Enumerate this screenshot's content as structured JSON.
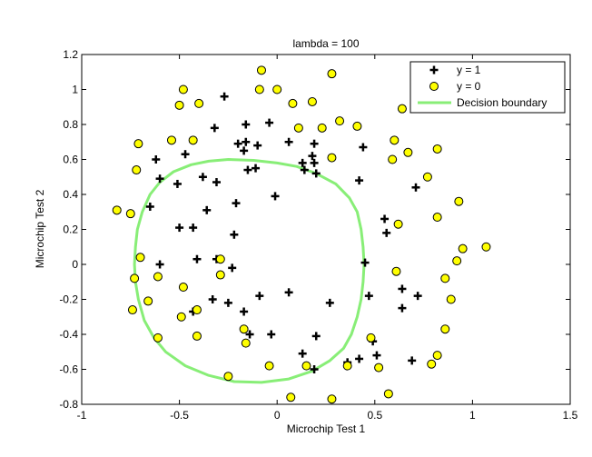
{
  "chart_data": {
    "type": "scatter",
    "title": "lambda = 100",
    "xlabel": "Microchip Test 1",
    "ylabel": "Microchip Test 2",
    "xlim": [
      -1,
      1.5
    ],
    "ylim": [
      -0.8,
      1.2
    ],
    "x_ticks": [
      -1,
      -0.5,
      0,
      0.5,
      1,
      1.5
    ],
    "x_tick_labels": [
      "-1",
      "-0.5",
      "0",
      "0.5",
      "1",
      "1.5"
    ],
    "y_ticks": [
      -0.8,
      -0.6,
      -0.4,
      -0.2,
      0,
      0.2,
      0.4,
      0.6,
      0.8,
      1,
      1.2
    ],
    "y_tick_labels": [
      "-0.8",
      "-0.6",
      "-0.4",
      "-0.2",
      "0",
      "0.2",
      "0.4",
      "0.6",
      "0.8",
      "1",
      "1.2"
    ],
    "grid": false,
    "legend_position": "top-right",
    "series": [
      {
        "name": "y = 1",
        "marker": "plus",
        "color": "#000000",
        "points": [
          [
            -0.27,
            0.96
          ],
          [
            -0.16,
            0.8
          ],
          [
            -0.04,
            0.81
          ],
          [
            -0.32,
            0.78
          ],
          [
            -0.16,
            0.7
          ],
          [
            -0.2,
            0.69
          ],
          [
            -0.1,
            0.68
          ],
          [
            -0.17,
            0.65
          ],
          [
            -0.47,
            0.63
          ],
          [
            -0.62,
            0.6
          ],
          [
            0.06,
            0.7
          ],
          [
            0.19,
            0.69
          ],
          [
            0.18,
            0.62
          ],
          [
            0.19,
            0.58
          ],
          [
            0.44,
            0.67
          ],
          [
            0.13,
            0.58
          ],
          [
            0.14,
            0.54
          ],
          [
            0.2,
            0.52
          ],
          [
            -0.15,
            0.54
          ],
          [
            -0.11,
            0.55
          ],
          [
            -0.38,
            0.5
          ],
          [
            -0.51,
            0.46
          ],
          [
            -0.31,
            0.47
          ],
          [
            -0.6,
            0.49
          ],
          [
            0.42,
            0.48
          ],
          [
            0.71,
            0.44
          ],
          [
            -0.01,
            0.39
          ],
          [
            -0.21,
            0.35
          ],
          [
            -0.65,
            0.33
          ],
          [
            -0.36,
            0.31
          ],
          [
            0.55,
            0.26
          ],
          [
            -0.43,
            0.21
          ],
          [
            -0.5,
            0.21
          ],
          [
            -0.22,
            0.17
          ],
          [
            0.56,
            0.18
          ],
          [
            -0.41,
            0.03
          ],
          [
            -0.31,
            0.03
          ],
          [
            -0.6,
            0.0
          ],
          [
            -0.23,
            -0.02
          ],
          [
            0.45,
            0.01
          ],
          [
            0.64,
            -0.14
          ],
          [
            0.72,
            -0.18
          ],
          [
            0.47,
            -0.18
          ],
          [
            0.64,
            -0.25
          ],
          [
            -0.33,
            -0.2
          ],
          [
            -0.25,
            -0.22
          ],
          [
            -0.09,
            -0.18
          ],
          [
            0.06,
            -0.16
          ],
          [
            0.27,
            -0.22
          ],
          [
            -0.43,
            -0.27
          ],
          [
            -0.17,
            -0.27
          ],
          [
            -0.14,
            -0.4
          ],
          [
            -0.03,
            -0.4
          ],
          [
            0.2,
            -0.41
          ],
          [
            0.49,
            -0.44
          ],
          [
            0.13,
            -0.51
          ],
          [
            0.42,
            -0.54
          ],
          [
            0.51,
            -0.52
          ],
          [
            0.36,
            -0.56
          ],
          [
            0.69,
            -0.55
          ],
          [
            0.19,
            -0.6
          ]
        ]
      },
      {
        "name": "y = 0",
        "marker": "circle",
        "color": "#ffff00",
        "points": [
          [
            -0.08,
            1.11
          ],
          [
            -0.48,
            1.0
          ],
          [
            -0.09,
            1.0
          ],
          [
            0.0,
            1.0
          ],
          [
            0.28,
            1.09
          ],
          [
            0.08,
            0.92
          ],
          [
            0.18,
            0.93
          ],
          [
            -0.5,
            0.91
          ],
          [
            -0.4,
            0.92
          ],
          [
            0.32,
            0.82
          ],
          [
            0.41,
            0.79
          ],
          [
            0.64,
            0.89
          ],
          [
            0.11,
            0.78
          ],
          [
            0.23,
            0.78
          ],
          [
            -0.71,
            0.69
          ],
          [
            -0.54,
            0.71
          ],
          [
            -0.43,
            0.71
          ],
          [
            0.6,
            0.71
          ],
          [
            0.82,
            0.66
          ],
          [
            0.67,
            0.64
          ],
          [
            0.59,
            0.6
          ],
          [
            0.28,
            0.61
          ],
          [
            -0.72,
            0.54
          ],
          [
            0.77,
            0.5
          ],
          [
            -0.82,
            0.31
          ],
          [
            -0.75,
            0.29
          ],
          [
            0.93,
            0.36
          ],
          [
            0.82,
            0.27
          ],
          [
            0.62,
            0.23
          ],
          [
            0.95,
            0.09
          ],
          [
            1.07,
            0.1
          ],
          [
            0.92,
            0.02
          ],
          [
            -0.7,
            0.04
          ],
          [
            -0.29,
            0.03
          ],
          [
            0.61,
            -0.04
          ],
          [
            -0.29,
            -0.06
          ],
          [
            -0.73,
            -0.08
          ],
          [
            -0.61,
            -0.07
          ],
          [
            0.86,
            -0.08
          ],
          [
            -0.48,
            -0.13
          ],
          [
            0.89,
            -0.2
          ],
          [
            -0.66,
            -0.21
          ],
          [
            -0.74,
            -0.26
          ],
          [
            -0.41,
            -0.26
          ],
          [
            -0.49,
            -0.3
          ],
          [
            0.86,
            -0.37
          ],
          [
            -0.17,
            -0.37
          ],
          [
            -0.16,
            -0.45
          ],
          [
            -0.61,
            -0.42
          ],
          [
            -0.41,
            -0.41
          ],
          [
            0.48,
            -0.42
          ],
          [
            0.82,
            -0.52
          ],
          [
            0.79,
            -0.57
          ],
          [
            0.36,
            -0.58
          ],
          [
            0.15,
            -0.58
          ],
          [
            -0.04,
            -0.58
          ],
          [
            0.52,
            -0.59
          ],
          [
            -0.25,
            -0.64
          ],
          [
            0.57,
            -0.74
          ],
          [
            0.07,
            -0.76
          ],
          [
            0.28,
            -0.77
          ]
        ]
      },
      {
        "name": "Decision boundary",
        "type": "line",
        "color": "#88ee77",
        "points": [
          [
            -0.25,
            0.6
          ],
          [
            -0.12,
            0.595
          ],
          [
            0.0,
            0.58
          ],
          [
            0.1,
            0.56
          ],
          [
            0.2,
            0.52
          ],
          [
            0.3,
            0.46
          ],
          [
            0.37,
            0.38
          ],
          [
            0.41,
            0.3
          ],
          [
            0.43,
            0.2
          ],
          [
            0.44,
            0.1
          ],
          [
            0.445,
            0.0
          ],
          [
            0.44,
            -0.1
          ],
          [
            0.43,
            -0.2
          ],
          [
            0.41,
            -0.3
          ],
          [
            0.38,
            -0.4
          ],
          [
            0.34,
            -0.48
          ],
          [
            0.27,
            -0.55
          ],
          [
            0.18,
            -0.61
          ],
          [
            0.06,
            -0.655
          ],
          [
            -0.08,
            -0.675
          ],
          [
            -0.22,
            -0.67
          ],
          [
            -0.35,
            -0.635
          ],
          [
            -0.47,
            -0.58
          ],
          [
            -0.57,
            -0.5
          ],
          [
            -0.63,
            -0.42
          ],
          [
            -0.68,
            -0.32
          ],
          [
            -0.71,
            -0.2
          ],
          [
            -0.725,
            -0.1
          ],
          [
            -0.73,
            0.0
          ],
          [
            -0.725,
            0.1
          ],
          [
            -0.715,
            0.2
          ],
          [
            -0.69,
            0.3
          ],
          [
            -0.65,
            0.4
          ],
          [
            -0.6,
            0.47
          ],
          [
            -0.53,
            0.53
          ],
          [
            -0.44,
            0.57
          ],
          [
            -0.35,
            0.59
          ],
          [
            -0.25,
            0.6
          ]
        ]
      }
    ]
  }
}
